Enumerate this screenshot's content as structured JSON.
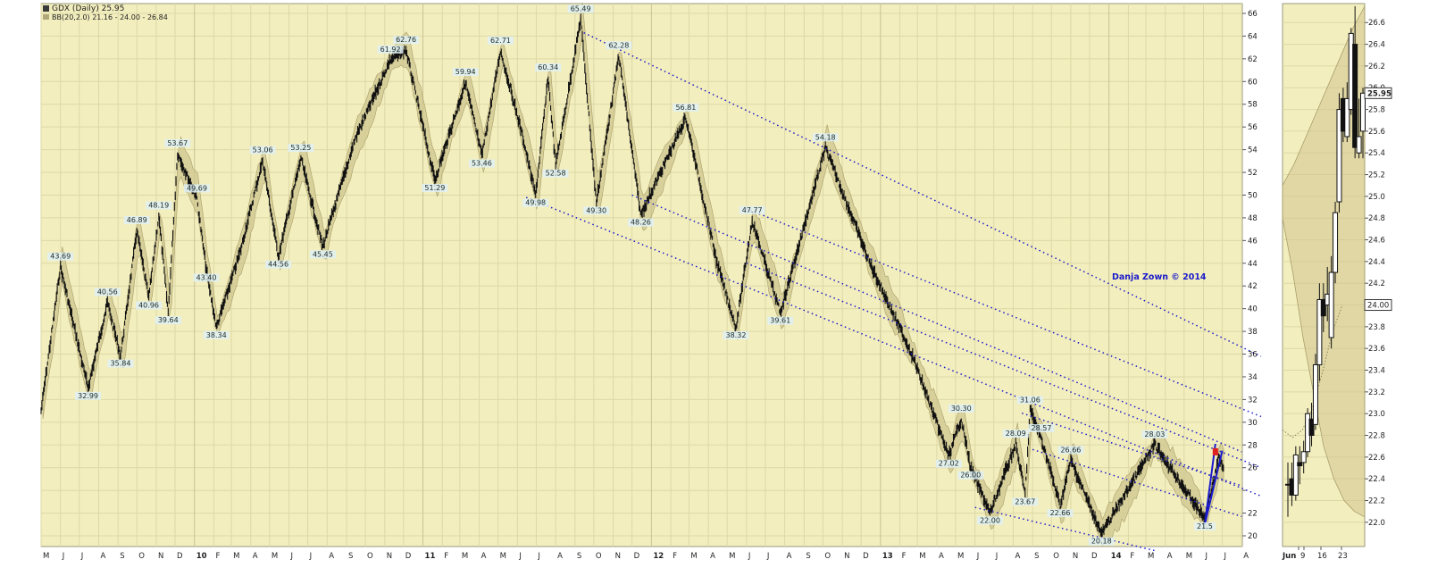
{
  "header": {
    "title": "GDX (Daily) 25.95",
    "indicator": "BB(20,2.0) 21.16 - 24.00 - 26.84"
  },
  "watermark": "Danja Zown © 2014",
  "colors": {
    "background": "#f3eebe",
    "price": "#111111",
    "band_fill": "#cfc58e",
    "trendline": "#1a1acc",
    "grid": "#ddd8a6",
    "highlight": "#e02020"
  },
  "chart_data": [
    {
      "type": "candlestick",
      "title": "GDX (Daily) 25.95",
      "ylim": [
        19,
        68
      ],
      "y_ticks": [
        20,
        22,
        24,
        26,
        28,
        30,
        32,
        34,
        36,
        38,
        40,
        42,
        44,
        46,
        48,
        50,
        52,
        54,
        56,
        58,
        60,
        62,
        64,
        66
      ],
      "y_tick_labels": [
        "20",
        "22",
        "",
        "26",
        "28",
        "30",
        "32",
        "34",
        "36",
        "38",
        "40",
        "42",
        "44",
        "46",
        "48",
        "50",
        "52",
        "54",
        "56",
        "58",
        "60",
        "62",
        "64",
        "66"
      ],
      "x_range": [
        "2009-05-01",
        "2014-09-01"
      ],
      "x_month_labels": [
        "M",
        "J",
        "J",
        "A",
        "S",
        "O",
        "N",
        "D",
        "10",
        "F",
        "M",
        "A",
        "M",
        "J",
        "J",
        "A",
        "S",
        "O",
        "N",
        "D",
        "11",
        "F",
        "M",
        "A",
        "M",
        "J",
        "J",
        "A",
        "S",
        "O",
        "N",
        "D",
        "12",
        "F",
        "M",
        "A",
        "M",
        "J",
        "J",
        "A",
        "S",
        "O",
        "N",
        "D",
        "13",
        "F",
        "M",
        "A",
        "M",
        "J",
        "J",
        "A",
        "S",
        "O",
        "N",
        "D",
        "14",
        "F",
        "M",
        "A",
        "M",
        "J",
        "J",
        "A"
      ],
      "x_month_dates": [
        "2009-05",
        "2009-06",
        "2009-07",
        "2009-08",
        "2009-09",
        "2009-10",
        "2009-11",
        "2009-12",
        "2010-01",
        "2010-02",
        "2010-03",
        "2010-04",
        "2010-05",
        "2010-06",
        "2010-07",
        "2010-08",
        "2010-09",
        "2010-10",
        "2010-11",
        "2010-12",
        "2011-01",
        "2011-02",
        "2011-03",
        "2011-04",
        "2011-05",
        "2011-06",
        "2011-07",
        "2011-08",
        "2011-09",
        "2011-10",
        "2011-11",
        "2011-12",
        "2012-01",
        "2012-02",
        "2012-03",
        "2012-04",
        "2012-05",
        "2012-06",
        "2012-07",
        "2012-08",
        "2012-09",
        "2012-10",
        "2012-11",
        "2012-12",
        "2013-01",
        "2013-02",
        "2013-03",
        "2013-04",
        "2013-05",
        "2013-06",
        "2013-07",
        "2013-08",
        "2013-09",
        "2013-10",
        "2013-11",
        "2013-12",
        "2014-01",
        "2014-02",
        "2014-03",
        "2014-04",
        "2014-05",
        "2014-06",
        "2014-07",
        "2014-08"
      ],
      "price_path": [
        {
          "x": "2009-05-01",
          "y": 31
        },
        {
          "x": "2009-06-01",
          "y": 43.69
        },
        {
          "x": "2009-07-15",
          "y": 32.99
        },
        {
          "x": "2009-08-15",
          "y": 40.56
        },
        {
          "x": "2009-09-05",
          "y": 35.84
        },
        {
          "x": "2009-10-01",
          "y": 46.89
        },
        {
          "x": "2009-10-20",
          "y": 40.96
        },
        {
          "x": "2009-11-05",
          "y": 48.19
        },
        {
          "x": "2009-11-20",
          "y": 39.64
        },
        {
          "x": "2009-12-05",
          "y": 53.67
        },
        {
          "x": "2010-01-05",
          "y": 49.69
        },
        {
          "x": "2010-01-20",
          "y": 43.4
        },
        {
          "x": "2010-02-05",
          "y": 38.34
        },
        {
          "x": "2010-03-15",
          "y": 45
        },
        {
          "x": "2010-04-20",
          "y": 53.06
        },
        {
          "x": "2010-05-15",
          "y": 44.56
        },
        {
          "x": "2010-06-20",
          "y": 53.25
        },
        {
          "x": "2010-07-25",
          "y": 45.45
        },
        {
          "x": "2010-09-15",
          "y": 55
        },
        {
          "x": "2010-11-10",
          "y": 61.92
        },
        {
          "x": "2010-12-05",
          "y": 62.76
        },
        {
          "x": "2011-01-20",
          "y": 51.29
        },
        {
          "x": "2011-03-10",
          "y": 59.94
        },
        {
          "x": "2011-04-05",
          "y": 53.46
        },
        {
          "x": "2011-05-05",
          "y": 62.71
        },
        {
          "x": "2011-06-10",
          "y": 55
        },
        {
          "x": "2011-06-30",
          "y": 49.98
        },
        {
          "x": "2011-07-20",
          "y": 60.34
        },
        {
          "x": "2011-08-01",
          "y": 52.58
        },
        {
          "x": "2011-09-10",
          "y": 65.49
        },
        {
          "x": "2011-10-05",
          "y": 49.3
        },
        {
          "x": "2011-11-10",
          "y": 62.28
        },
        {
          "x": "2011-12-15",
          "y": 48.26
        },
        {
          "x": "2012-02-25",
          "y": 56.81
        },
        {
          "x": "2012-04-15",
          "y": 44
        },
        {
          "x": "2012-05-15",
          "y": 38.32
        },
        {
          "x": "2012-06-10",
          "y": 47.77
        },
        {
          "x": "2012-07-25",
          "y": 39.61
        },
        {
          "x": "2012-10-05",
          "y": 54.18
        },
        {
          "x": "2012-12-15",
          "y": 44
        },
        {
          "x": "2013-02-20",
          "y": 36
        },
        {
          "x": "2013-04-20",
          "y": 27.02
        },
        {
          "x": "2013-05-10",
          "y": 30.3
        },
        {
          "x": "2013-05-25",
          "y": 26
        },
        {
          "x": "2013-06-25",
          "y": 22
        },
        {
          "x": "2013-08-05",
          "y": 28.09
        },
        {
          "x": "2013-08-20",
          "y": 23.67
        },
        {
          "x": "2013-08-28",
          "y": 31.06
        },
        {
          "x": "2013-09-15",
          "y": 28.57
        },
        {
          "x": "2013-10-15",
          "y": 22.66
        },
        {
          "x": "2013-11-01",
          "y": 26.66
        },
        {
          "x": "2013-12-20",
          "y": 20.18
        },
        {
          "x": "2014-03-15",
          "y": 28.03
        },
        {
          "x": "2014-06-03",
          "y": 21.5
        },
        {
          "x": "2014-06-25",
          "y": 26.8
        },
        {
          "x": "2014-07-03",
          "y": 25.95
        }
      ],
      "labels": [
        {
          "x": "2009-06-01",
          "y": 43.69,
          "text": "43.69",
          "pos": "above"
        },
        {
          "x": "2009-07-15",
          "y": 32.99,
          "text": "32.99",
          "pos": "below"
        },
        {
          "x": "2009-08-15",
          "y": 40.56,
          "text": "40.56",
          "pos": "above"
        },
        {
          "x": "2009-09-05",
          "y": 35.84,
          "text": "35.84",
          "pos": "below"
        },
        {
          "x": "2009-10-01",
          "y": 46.89,
          "text": "46.89",
          "pos": "above"
        },
        {
          "x": "2009-10-20",
          "y": 40.96,
          "text": "40.96",
          "pos": "below"
        },
        {
          "x": "2009-11-05",
          "y": 48.19,
          "text": "48.19",
          "pos": "above"
        },
        {
          "x": "2009-11-20",
          "y": 39.64,
          "text": "39.64",
          "pos": "below"
        },
        {
          "x": "2009-12-05",
          "y": 53.67,
          "text": "53.67",
          "pos": "above"
        },
        {
          "x": "2010-01-05",
          "y": 49.69,
          "text": "49.69",
          "pos": "above"
        },
        {
          "x": "2010-01-20",
          "y": 43.4,
          "text": "43.40",
          "pos": "below"
        },
        {
          "x": "2010-02-05",
          "y": 38.34,
          "text": "38.34",
          "pos": "below"
        },
        {
          "x": "2010-04-20",
          "y": 53.06,
          "text": "53.06",
          "pos": "above"
        },
        {
          "x": "2010-05-15",
          "y": 44.56,
          "text": "44.56",
          "pos": "below"
        },
        {
          "x": "2010-06-20",
          "y": 53.25,
          "text": "53.25",
          "pos": "above"
        },
        {
          "x": "2010-07-25",
          "y": 45.45,
          "text": "45.45",
          "pos": "below"
        },
        {
          "x": "2010-11-10",
          "y": 61.92,
          "text": "61.92",
          "pos": "above"
        },
        {
          "x": "2010-12-05",
          "y": 62.76,
          "text": "62.76",
          "pos": "above"
        },
        {
          "x": "2011-01-20",
          "y": 51.29,
          "text": "51.29",
          "pos": "below"
        },
        {
          "x": "2011-03-10",
          "y": 59.94,
          "text": "59.94",
          "pos": "above"
        },
        {
          "x": "2011-04-05",
          "y": 53.46,
          "text": "53.46",
          "pos": "below"
        },
        {
          "x": "2011-05-05",
          "y": 62.71,
          "text": "62.71",
          "pos": "above"
        },
        {
          "x": "2011-06-30",
          "y": 49.98,
          "text": "49.98",
          "pos": "below"
        },
        {
          "x": "2011-07-20",
          "y": 60.34,
          "text": "60.34",
          "pos": "above"
        },
        {
          "x": "2011-08-01",
          "y": 52.58,
          "text": "52.58",
          "pos": "below"
        },
        {
          "x": "2011-09-10",
          "y": 65.49,
          "text": "65.49",
          "pos": "above"
        },
        {
          "x": "2011-10-05",
          "y": 49.3,
          "text": "49.30",
          "pos": "below"
        },
        {
          "x": "2011-11-10",
          "y": 62.28,
          "text": "62.28",
          "pos": "above"
        },
        {
          "x": "2011-12-15",
          "y": 48.26,
          "text": "48.26",
          "pos": "below"
        },
        {
          "x": "2012-02-25",
          "y": 56.81,
          "text": "56.81",
          "pos": "above"
        },
        {
          "x": "2012-05-15",
          "y": 38.32,
          "text": "38.32",
          "pos": "below"
        },
        {
          "x": "2012-06-10",
          "y": 47.77,
          "text": "47.77",
          "pos": "above"
        },
        {
          "x": "2012-07-25",
          "y": 39.61,
          "text": "39.61",
          "pos": "below"
        },
        {
          "x": "2012-10-05",
          "y": 54.18,
          "text": "54.18",
          "pos": "above"
        },
        {
          "x": "2013-04-20",
          "y": 27.02,
          "text": "27.02",
          "pos": "below"
        },
        {
          "x": "2013-05-10",
          "y": 30.3,
          "text": "30.30",
          "pos": "above"
        },
        {
          "x": "2013-05-25",
          "y": 26.0,
          "text": "26.00",
          "pos": "below"
        },
        {
          "x": "2013-06-25",
          "y": 22.0,
          "text": "22.00",
          "pos": "below"
        },
        {
          "x": "2013-08-05",
          "y": 28.09,
          "text": "28.09",
          "pos": "above"
        },
        {
          "x": "2013-08-20",
          "y": 23.67,
          "text": "23.67",
          "pos": "below"
        },
        {
          "x": "2013-08-28",
          "y": 31.06,
          "text": "31.06",
          "pos": "above"
        },
        {
          "x": "2013-09-15",
          "y": 28.57,
          "text": "28.57",
          "pos": "above"
        },
        {
          "x": "2013-10-15",
          "y": 22.66,
          "text": "22.66",
          "pos": "below"
        },
        {
          "x": "2013-11-01",
          "y": 26.66,
          "text": "26.66",
          "pos": "above"
        },
        {
          "x": "2013-12-20",
          "y": 20.18,
          "text": "20.18",
          "pos": "below"
        },
        {
          "x": "2014-03-15",
          "y": 28.03,
          "text": "28.03",
          "pos": "above"
        },
        {
          "x": "2014-06-03",
          "y": 21.5,
          "text": "21.5",
          "pos": "below"
        }
      ],
      "channel_lines": [
        {
          "x1": "2011-09-15",
          "y1": 64.3,
          "x2": "2014-09-01",
          "y2": 35.8
        },
        {
          "x1": "2012-06-01",
          "y1": 48.8,
          "x2": "2014-09-01",
          "y2": 30.5
        },
        {
          "x1": "2011-12-01",
          "y1": 50.0,
          "x2": "2014-08-01",
          "y2": 27.4
        },
        {
          "x1": "2012-06-01",
          "y1": 44.0,
          "x2": "2014-09-01",
          "y2": 26.0
        },
        {
          "x1": "2011-06-15",
          "y1": 49.8,
          "x2": "2014-09-01",
          "y2": 23.5
        },
        {
          "x1": "2013-08-15",
          "y1": 30.8,
          "x2": "2014-08-01",
          "y2": 24.4
        },
        {
          "x1": "2013-09-01",
          "y1": 27.6,
          "x2": "2014-08-01",
          "y2": 21.7
        },
        {
          "x1": "2013-06-01",
          "y1": 22.5,
          "x2": "2014-03-15",
          "y2": 18.7
        }
      ],
      "wedge": {
        "low": {
          "x": "2014-06-03",
          "y": 21.0
        },
        "high_left": {
          "x": "2014-06-20",
          "y": 28.1
        },
        "high_right": {
          "x": "2014-07-01",
          "y": 27.5
        }
      },
      "highlight_marker": {
        "x": "2014-06-20",
        "y": 27.4
      }
    },
    {
      "type": "candlestick",
      "title": "GDX (Daily) 25.95",
      "ylim": [
        21.9,
        26.75
      ],
      "y_ticks": [
        22.0,
        22.2,
        22.4,
        22.6,
        22.8,
        23.0,
        23.2,
        23.4,
        23.6,
        23.8,
        24.0,
        24.2,
        24.4,
        24.6,
        24.8,
        25.0,
        25.2,
        25.4,
        25.6,
        25.8,
        26.0,
        26.2,
        26.4,
        26.6
      ],
      "y_tick_labels": [
        "22.0",
        "22.2",
        "22.4",
        "22.6",
        "22.8",
        "23.0",
        "23.2",
        "23.4",
        "23.6",
        "23.8",
        "24.0",
        "24.2",
        "24.4",
        "24.6",
        "24.8",
        "25.0",
        "25.2",
        "25.4",
        "25.6",
        "25.8",
        "26.0",
        "26.2",
        "26.4",
        "26.6"
      ],
      "x_labels": [
        "Jun",
        "9",
        "16",
        "23"
      ],
      "price_badges": [
        "25.95",
        "24.00"
      ],
      "price_badge_values": [
        25.95,
        24.0
      ],
      "candles": [
        {
          "o": 22.35,
          "h": 22.55,
          "l": 22.05,
          "c": 22.35
        },
        {
          "o": 22.4,
          "h": 22.55,
          "l": 22.15,
          "c": 22.25
        },
        {
          "o": 22.25,
          "h": 22.7,
          "l": 22.2,
          "c": 22.62
        },
        {
          "o": 22.55,
          "h": 22.7,
          "l": 22.35,
          "c": 22.52
        },
        {
          "o": 22.55,
          "h": 22.75,
          "l": 22.45,
          "c": 22.65
        },
        {
          "o": 22.65,
          "h": 23.05,
          "l": 22.6,
          "c": 23.0
        },
        {
          "o": 22.95,
          "h": 23.1,
          "l": 22.7,
          "c": 22.8
        },
        {
          "o": 22.9,
          "h": 23.55,
          "l": 22.85,
          "c": 23.45
        },
        {
          "o": 23.45,
          "h": 24.2,
          "l": 23.3,
          "c": 24.05
        },
        {
          "o": 24.05,
          "h": 24.2,
          "l": 23.75,
          "c": 23.9
        },
        {
          "o": 24.0,
          "h": 24.35,
          "l": 23.85,
          "c": 24.1
        },
        {
          "o": 23.7,
          "h": 24.45,
          "l": 23.6,
          "c": 24.3
        },
        {
          "o": 24.3,
          "h": 24.95,
          "l": 24.2,
          "c": 24.85
        },
        {
          "o": 24.95,
          "h": 25.95,
          "l": 24.85,
          "c": 25.8
        },
        {
          "o": 25.9,
          "h": 26.0,
          "l": 25.5,
          "c": 25.6
        },
        {
          "o": 25.55,
          "h": 26.05,
          "l": 25.5,
          "c": 25.9
        },
        {
          "o": 25.8,
          "h": 26.55,
          "l": 25.75,
          "c": 26.5
        },
        {
          "o": 26.4,
          "h": 26.75,
          "l": 25.35,
          "c": 25.45
        },
        {
          "o": 25.4,
          "h": 25.9,
          "l": 25.35,
          "c": 25.55
        },
        {
          "o": 25.6,
          "h": 26.0,
          "l": 25.35,
          "c": 25.95
        }
      ],
      "band_upper": [
        25.1,
        25.3,
        25.55,
        25.8,
        26.05,
        26.3,
        26.55,
        26.75
      ],
      "band_middle": [
        22.85,
        22.78,
        22.85,
        23.05,
        23.38,
        23.75,
        24.0
      ],
      "band_lower": [
        24.8,
        24.3,
        23.7,
        23.2,
        22.7,
        22.4,
        22.2,
        22.1,
        22.05
      ]
    }
  ]
}
